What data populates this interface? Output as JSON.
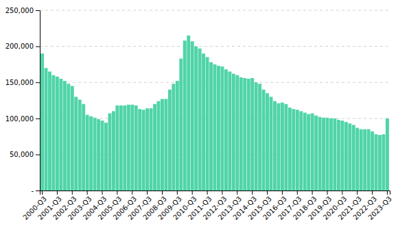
{
  "chart_data": {
    "type": "bar",
    "categories": [
      "2000-Q3",
      null,
      null,
      null,
      "2001-Q3",
      null,
      null,
      null,
      "2002-Q3",
      null,
      null,
      null,
      "2003-Q3",
      null,
      null,
      null,
      "2004-Q3",
      null,
      null,
      null,
      "2005-Q3",
      null,
      null,
      null,
      "2006-Q3",
      null,
      null,
      null,
      "2007-Q3",
      null,
      null,
      null,
      "2008-Q3",
      null,
      null,
      null,
      "2009-Q3",
      null,
      null,
      null,
      "2010-Q3",
      null,
      null,
      null,
      "2011-Q3",
      null,
      null,
      null,
      "2012-Q3",
      null,
      null,
      null,
      "2013-Q3",
      null,
      null,
      null,
      "2014-Q3",
      null,
      null,
      null,
      "2015-Q3",
      null,
      null,
      null,
      "2016-Q3",
      null,
      null,
      null,
      "2017-Q3",
      null,
      null,
      null,
      "2018-Q3",
      null,
      null,
      null,
      "2019-Q3",
      null,
      null,
      null,
      "2020-Q3",
      null,
      null,
      null,
      "2021-Q3",
      null,
      null,
      null,
      "2022-Q3",
      null,
      null,
      null,
      "2023-Q3"
    ],
    "values": [
      190000,
      170000,
      165000,
      160000,
      158000,
      155000,
      152000,
      148000,
      145000,
      130000,
      126000,
      120000,
      105000,
      103000,
      101000,
      99000,
      97000,
      94000,
      107000,
      110000,
      118000,
      118000,
      118000,
      119000,
      119000,
      118000,
      113000,
      112000,
      114000,
      114000,
      120000,
      124000,
      127000,
      127000,
      140000,
      148000,
      152000,
      183000,
      208000,
      215000,
      207000,
      200000,
      197000,
      190000,
      185000,
      178000,
      175000,
      173000,
      172000,
      168000,
      165000,
      162000,
      160000,
      157000,
      156000,
      155000,
      156000,
      150000,
      148000,
      140000,
      135000,
      130000,
      124000,
      121000,
      122000,
      120000,
      115000,
      113000,
      112000,
      110000,
      108000,
      106000,
      107000,
      104000,
      102000,
      101000,
      101000,
      100000,
      100000,
      98000,
      97000,
      95000,
      93000,
      91000,
      87000,
      85000,
      85000,
      85000,
      82000,
      78000,
      77000,
      78000,
      100000
    ],
    "color": "#50d4a8",
    "ylim": [
      0,
      250000
    ],
    "yticks": [
      {
        "value": 0,
        "label": "-"
      },
      {
        "value": 50000,
        "label": "50,000"
      },
      {
        "value": 100000,
        "label": "100,000"
      },
      {
        "value": 150000,
        "label": "150,000"
      },
      {
        "value": 200000,
        "label": "200,000"
      },
      {
        "value": 250000,
        "label": "250,000"
      }
    ],
    "grid": true
  }
}
